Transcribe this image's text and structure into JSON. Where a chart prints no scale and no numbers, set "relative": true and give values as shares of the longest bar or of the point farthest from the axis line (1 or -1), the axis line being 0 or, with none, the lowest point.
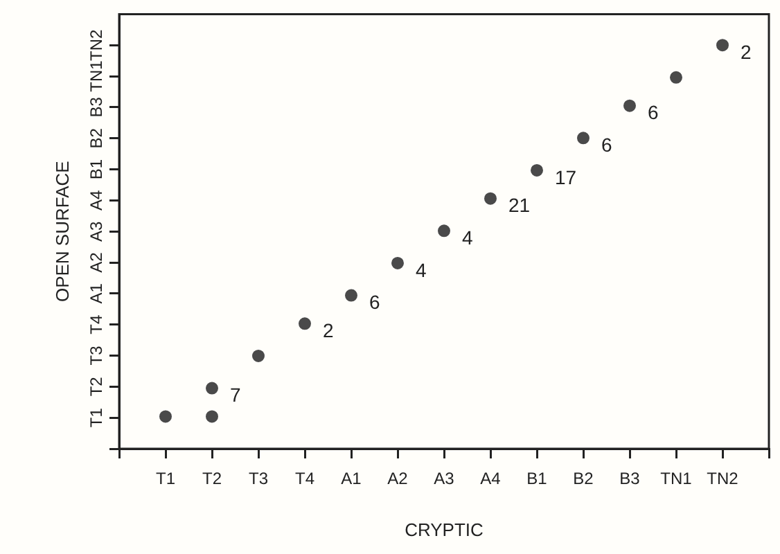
{
  "chart_data": {
    "type": "scatter",
    "xlabel": "CRYPTIC",
    "ylabel": "OPEN SURFACE",
    "relative": true,
    "categories": [
      "T1",
      "T2",
      "T3",
      "T4",
      "A1",
      "A2",
      "A3",
      "A4",
      "B1",
      "B2",
      "B3",
      "TN1",
      "TN2"
    ],
    "y_categories": [
      "TN2",
      "TN1",
      "B3",
      "B2",
      "B1",
      "A4",
      "A3",
      "A2",
      "A1",
      "T4",
      "T3",
      "T2",
      "T1"
    ],
    "series": [
      {
        "color": "#4a4a4a",
        "values": [
          0.08,
          0.15,
          0.23,
          0.31,
          0.38,
          0.46,
          0.54,
          0.62,
          0.69,
          0.77,
          0.85,
          0.92,
          1
        ]
      },
      {
        "color": "#4a4a4a",
        "values": [
          null,
          0.08,
          null,
          null,
          null,
          null,
          null,
          null,
          null,
          null,
          null,
          null,
          null
        ]
      }
    ],
    "annotations": [
      {
        "text": "7",
        "x": "T2",
        "y": 0.15
      },
      {
        "text": "2",
        "x": "T4",
        "y": 0.31
      },
      {
        "text": "6",
        "x": "A1",
        "y": 0.38
      },
      {
        "text": "4",
        "x": "A2",
        "y": 0.46
      },
      {
        "text": "4",
        "x": "A3",
        "y": 0.54
      },
      {
        "text": "21",
        "x": "A4",
        "y": 0.62
      },
      {
        "text": "17",
        "x": "B1",
        "y": 0.69
      },
      {
        "text": "6",
        "x": "B2",
        "y": 0.77
      },
      {
        "text": "6",
        "x": "B3",
        "y": 0.85
      },
      {
        "text": "2",
        "x": "TN2",
        "y": 1
      }
    ],
    "marker": "circle",
    "grid": false,
    "legend": false
  }
}
